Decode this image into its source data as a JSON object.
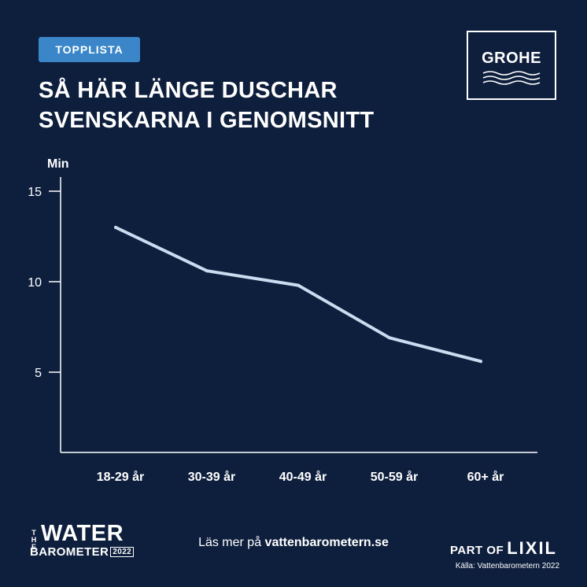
{
  "header": {
    "badge": "TOPPLISTA",
    "title_line1": "SÅ HÄR LÄNGE DUSCHAR",
    "title_line2": "SVENSKARNA I GENOMSNITT"
  },
  "logo": {
    "text": "GROHE"
  },
  "chart_data": {
    "type": "line",
    "title": "SÅ HÄR LÄNGE DUSCHAR SVENSKARNA I GENOMSNITT",
    "ylabel": "Min",
    "xlabel": "",
    "categories": [
      "18-29 år",
      "30-39 år",
      "40-49 år",
      "50-59 år",
      "60+ år"
    ],
    "series": [
      {
        "values": [
          13.0,
          10.6,
          9.8,
          6.9,
          5.6
        ]
      }
    ],
    "ylim": [
      0,
      15
    ],
    "yticks": [
      5,
      10,
      15
    ],
    "grid": false,
    "line_color": "#c9dcf0"
  },
  "footer": {
    "brand_the": "THE",
    "brand_water": "WATER",
    "brand_barometer": "BAROMETER",
    "brand_year": "2022",
    "link_prefix": "Läs mer på ",
    "link_url": "vattenbarometern.se",
    "part_of": "PART OF",
    "lixil": "LIXIL",
    "source": "Källa: Vattenbarometern 2022"
  },
  "colors": {
    "background": "#0e1f3d",
    "badge": "#3a86c8",
    "line": "#c9dcf0"
  }
}
